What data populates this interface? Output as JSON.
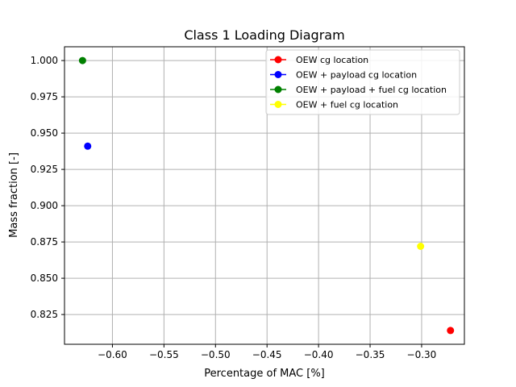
{
  "chart_data": {
    "type": "scatter",
    "title": "Class 1 Loading Diagram",
    "xlabel": "Percentage of MAC [%]",
    "ylabel": "Mass fraction [-]",
    "xlim": [
      -0.6465,
      -0.2585
    ],
    "ylim": [
      0.8045,
      1.0095
    ],
    "x_ticks": [
      -0.6,
      -0.55,
      -0.5,
      -0.45,
      -0.4,
      -0.35,
      -0.3
    ],
    "x_tick_labels": [
      "−0.60",
      "−0.55",
      "−0.50",
      "−0.45",
      "−0.40",
      "−0.35",
      "−0.30"
    ],
    "y_ticks": [
      0.825,
      0.85,
      0.875,
      0.9,
      0.925,
      0.95,
      0.975,
      1.0
    ],
    "y_tick_labels": [
      "0.825",
      "0.850",
      "0.875",
      "0.900",
      "0.925",
      "0.950",
      "0.975",
      "1.000"
    ],
    "grid": true,
    "legend_position": "top-right",
    "series": [
      {
        "name": "OEW cg location",
        "color": "#ff0000",
        "x": [
          -0.272
        ],
        "y": [
          0.814
        ]
      },
      {
        "name": "OEW + payload cg location",
        "color": "#0000ff",
        "x": [
          -0.624
        ],
        "y": [
          0.941
        ]
      },
      {
        "name": "OEW + payload + fuel cg location",
        "color": "#008000",
        "x": [
          -0.629
        ],
        "y": [
          1.0
        ]
      },
      {
        "name": "OEW + fuel cg location",
        "color": "#ffff00",
        "x": [
          -0.301
        ],
        "y": [
          0.872
        ]
      }
    ]
  }
}
